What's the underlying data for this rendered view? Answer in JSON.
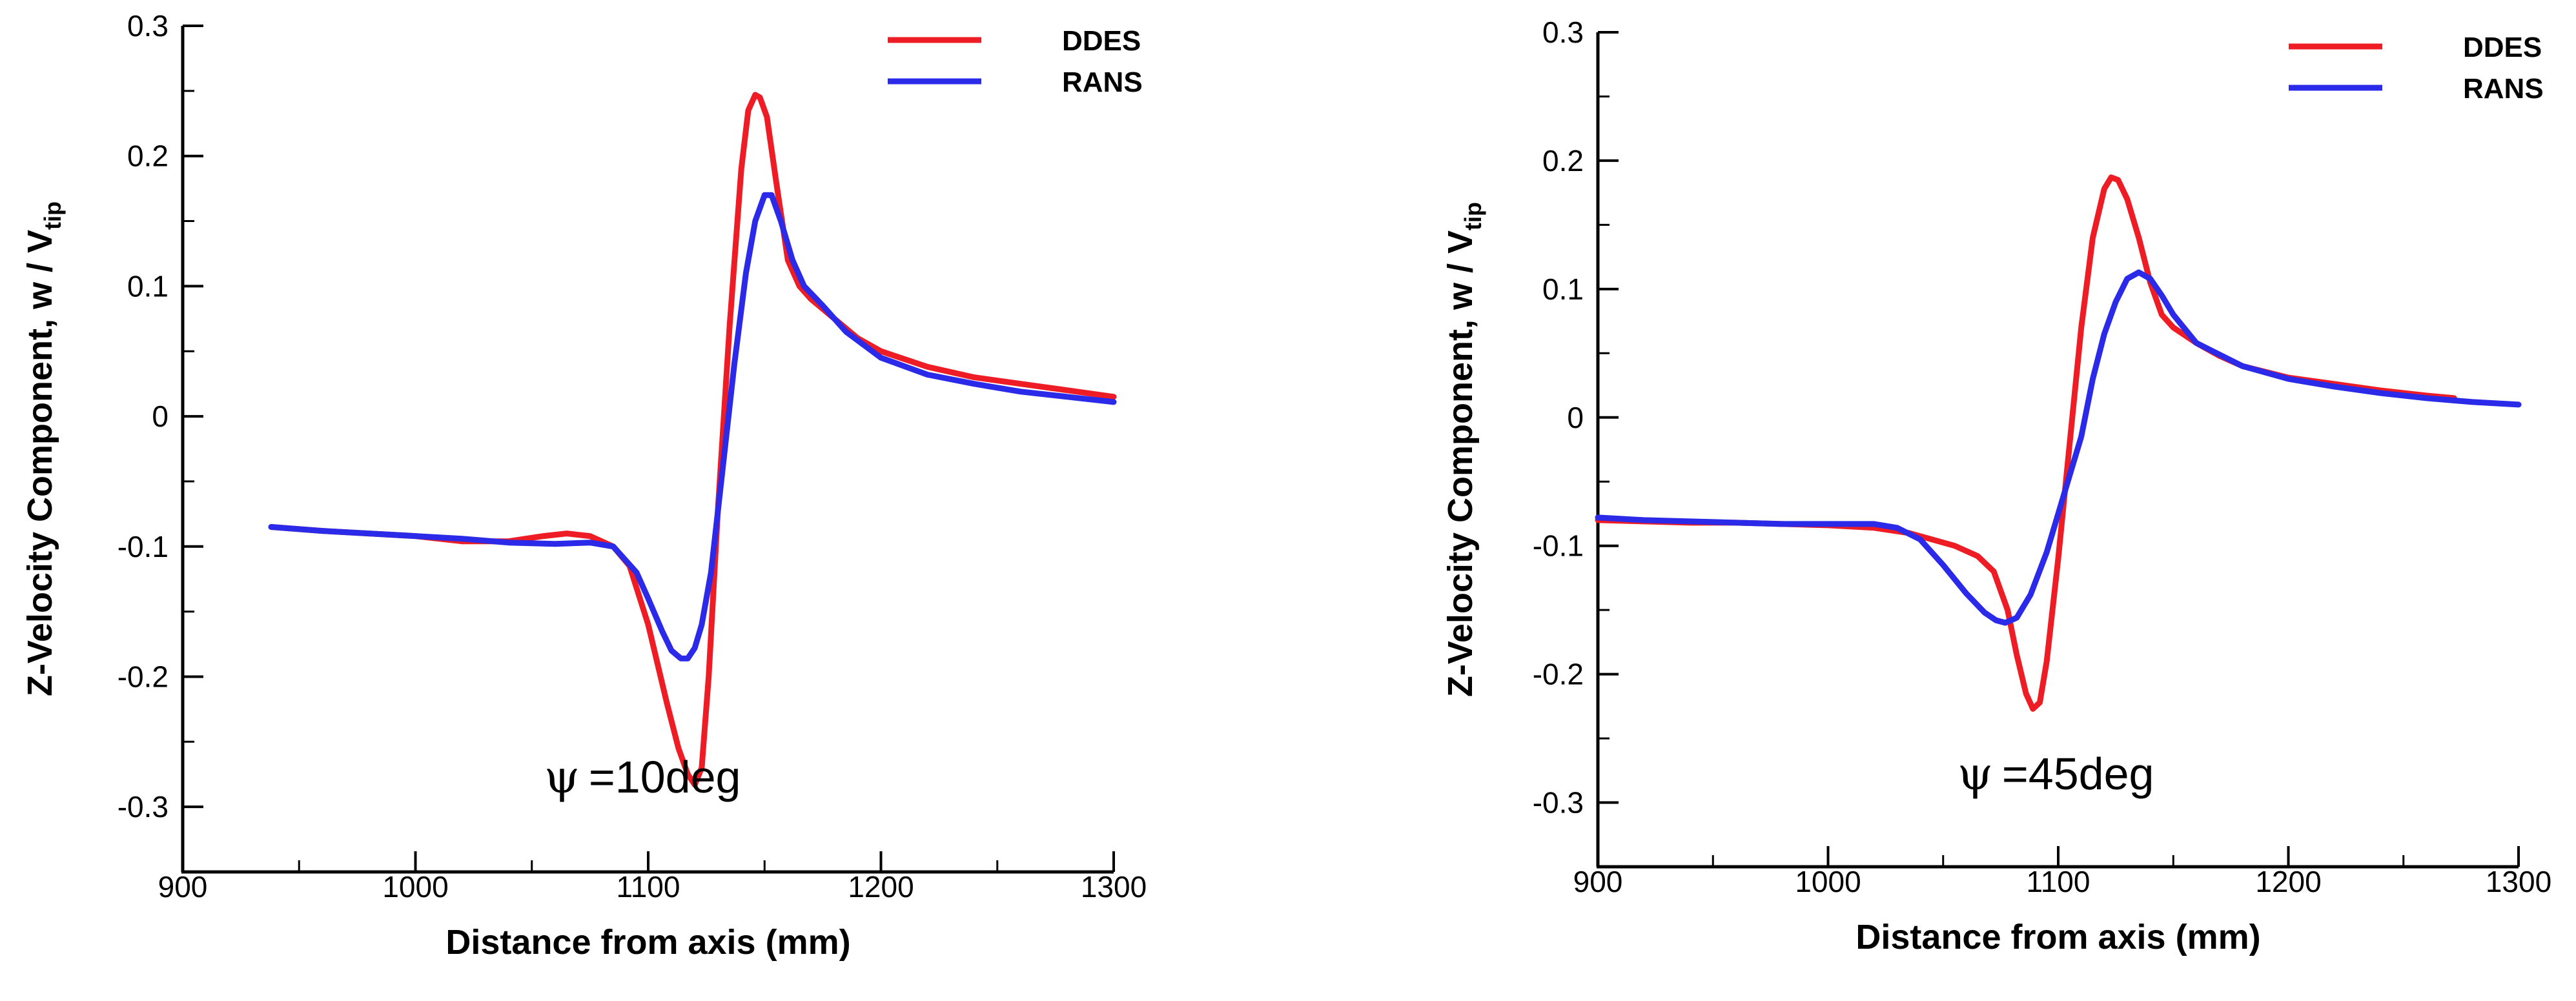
{
  "chart_data": [
    {
      "type": "line",
      "title": "",
      "annotation": {
        "symbol": "ψ",
        "text": "=10deg",
        "x": 1080,
        "y": -0.29
      },
      "xlabel": "Distance from axis (mm)",
      "ylabel": "Z-Velocity Component, w / V",
      "ylabel_sub": "tip",
      "xlim": [
        900,
        1300
      ],
      "ylim": [
        -0.35,
        0.3
      ],
      "xticks": [
        900,
        1000,
        1100,
        1200,
        1300
      ],
      "xtick_labels": [
        "900",
        "1000",
        "1100",
        "1200",
        "1300"
      ],
      "yticks": [
        -0.3,
        -0.2,
        -0.1,
        0,
        0.1,
        0.2,
        0.3
      ],
      "ytick_labels": [
        "-0.3",
        "-0.2",
        "-0.1",
        "0",
        "0.1",
        "0.2",
        "0.3"
      ],
      "grid": false,
      "legend": "top-right",
      "series": [
        {
          "name": "DDES",
          "color": "#ee1c24",
          "x": [
            938,
            960,
            980,
            1000,
            1020,
            1040,
            1055,
            1065,
            1075,
            1085,
            1092,
            1100,
            1108,
            1113,
            1117,
            1120,
            1123,
            1126,
            1130,
            1135,
            1140,
            1143,
            1146,
            1148,
            1151,
            1155,
            1160,
            1165,
            1170,
            1180,
            1190,
            1200,
            1220,
            1240,
            1260,
            1280,
            1300
          ],
          "y": [
            -0.085,
            -0.088,
            -0.09,
            -0.092,
            -0.096,
            -0.096,
            -0.092,
            -0.09,
            -0.092,
            -0.1,
            -0.115,
            -0.16,
            -0.22,
            -0.255,
            -0.275,
            -0.283,
            -0.27,
            -0.2,
            -0.07,
            0.07,
            0.19,
            0.235,
            0.247,
            0.245,
            0.23,
            0.18,
            0.12,
            0.1,
            0.09,
            0.075,
            0.06,
            0.05,
            0.038,
            0.03,
            0.025,
            0.02,
            0.015
          ]
        },
        {
          "name": "RANS",
          "color": "#2a2ae8",
          "x": [
            938,
            960,
            980,
            1000,
            1020,
            1040,
            1060,
            1075,
            1085,
            1095,
            1100,
            1106,
            1110,
            1114,
            1117,
            1120,
            1123,
            1127,
            1132,
            1137,
            1142,
            1146,
            1150,
            1153,
            1157,
            1162,
            1167,
            1175,
            1185,
            1200,
            1220,
            1240,
            1260,
            1280,
            1300
          ],
          "y": [
            -0.085,
            -0.088,
            -0.09,
            -0.092,
            -0.094,
            -0.097,
            -0.098,
            -0.097,
            -0.1,
            -0.12,
            -0.14,
            -0.165,
            -0.18,
            -0.186,
            -0.186,
            -0.178,
            -0.16,
            -0.12,
            -0.04,
            0.04,
            0.11,
            0.15,
            0.17,
            0.17,
            0.15,
            0.12,
            0.1,
            0.085,
            0.065,
            0.045,
            0.032,
            0.025,
            0.019,
            0.015,
            0.011
          ]
        }
      ]
    },
    {
      "type": "line",
      "title": "",
      "annotation": {
        "symbol": "ψ",
        "text": "=45deg",
        "x": 1083,
        "y": -0.29
      },
      "xlabel": "Distance from axis (mm)",
      "ylabel": "Z-Velocity Component, w / V",
      "ylabel_sub": "tip",
      "xlim": [
        900,
        1300
      ],
      "ylim": [
        -0.35,
        0.3
      ],
      "xticks": [
        900,
        1000,
        1100,
        1200,
        1300
      ],
      "xtick_labels": [
        "900",
        "1000",
        "1100",
        "1200",
        "1300"
      ],
      "yticks": [
        -0.3,
        -0.2,
        -0.1,
        0,
        0.1,
        0.2,
        0.3
      ],
      "ytick_labels": [
        "-0.3",
        "-0.2",
        "-0.1",
        "0",
        "0.1",
        "0.2",
        "0.3"
      ],
      "grid": false,
      "legend": "top-right",
      "series": [
        {
          "name": "DDES",
          "color": "#ee1c24",
          "x": [
            900,
            920,
            940,
            960,
            980,
            1000,
            1020,
            1035,
            1045,
            1055,
            1065,
            1072,
            1078,
            1082,
            1086,
            1089,
            1092,
            1095,
            1100,
            1105,
            1110,
            1115,
            1120,
            1123,
            1126,
            1130,
            1135,
            1140,
            1145,
            1150,
            1160,
            1170,
            1180,
            1200,
            1220,
            1240,
            1260,
            1272
          ],
          "y": [
            -0.08,
            -0.081,
            -0.082,
            -0.082,
            -0.083,
            -0.084,
            -0.086,
            -0.09,
            -0.095,
            -0.1,
            -0.108,
            -0.12,
            -0.15,
            -0.185,
            -0.215,
            -0.227,
            -0.222,
            -0.19,
            -0.11,
            -0.02,
            0.07,
            0.14,
            0.178,
            0.187,
            0.185,
            0.17,
            0.14,
            0.105,
            0.08,
            0.07,
            0.058,
            0.048,
            0.04,
            0.031,
            0.026,
            0.021,
            0.017,
            0.015
          ]
        },
        {
          "name": "RANS",
          "color": "#2a2ae8",
          "x": [
            900,
            920,
            940,
            960,
            980,
            1000,
            1020,
            1030,
            1040,
            1050,
            1060,
            1068,
            1073,
            1077,
            1082,
            1088,
            1095,
            1100,
            1105,
            1110,
            1115,
            1120,
            1125,
            1130,
            1135,
            1140,
            1145,
            1150,
            1160,
            1180,
            1200,
            1220,
            1240,
            1260,
            1280,
            1300
          ],
          "y": [
            -0.078,
            -0.08,
            -0.081,
            -0.082,
            -0.083,
            -0.083,
            -0.083,
            -0.086,
            -0.095,
            -0.115,
            -0.137,
            -0.152,
            -0.158,
            -0.16,
            -0.156,
            -0.138,
            -0.105,
            -0.075,
            -0.045,
            -0.015,
            0.03,
            0.065,
            0.09,
            0.108,
            0.113,
            0.108,
            0.095,
            0.08,
            0.058,
            0.04,
            0.03,
            0.024,
            0.019,
            0.015,
            0.012,
            0.01
          ]
        }
      ]
    }
  ]
}
